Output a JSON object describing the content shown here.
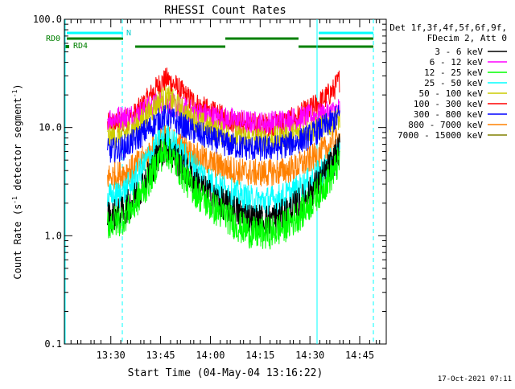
{
  "chart_data": {
    "type": "line",
    "title": "RHESSI Count Rates",
    "xlabel": "Start Time (04-May-04 13:16:22)",
    "ylabel_main": "Count Rate (s",
    "ylabel_sup": "-1",
    "ylabel_mid": " detector segment",
    "ylabel_sup2": "-1",
    "ylabel_end": ")",
    "yscale": "log",
    "ylim": [
      0.1,
      100.0
    ],
    "yticks": [
      {
        "value": 0.1,
        "label": "0.1"
      },
      {
        "value": 1.0,
        "label": "1.0"
      },
      {
        "value": 10.0,
        "label": "10.0"
      },
      {
        "value": 100.0,
        "label": "100.0"
      }
    ],
    "xlim_minutes_after_1316": [
      0,
      97
    ],
    "xticks": [
      {
        "minute": 14,
        "label": "13:30"
      },
      {
        "minute": 29,
        "label": "13:45"
      },
      {
        "minute": 44,
        "label": "14:00"
      },
      {
        "minute": 59,
        "label": "14:15"
      },
      {
        "minute": 74,
        "label": "14:30"
      },
      {
        "minute": 89,
        "label": "14:45"
      }
    ],
    "legend_header": [
      "Det 1f,3f,4f,5f,6f,9f,",
      "FDecim 2, Att 0"
    ],
    "legend_position": "right",
    "series": [
      {
        "name": "3 - 6 keV",
        "color": "#000000",
        "x": [
          13,
          17,
          21,
          25,
          29,
          31,
          33,
          37,
          41,
          45,
          49,
          53,
          57,
          61,
          65,
          69,
          73,
          77,
          81,
          83
        ],
        "y": [
          1.5,
          1.6,
          2.2,
          3.5,
          6.0,
          6.5,
          5.5,
          3.8,
          2.8,
          2.2,
          1.9,
          1.6,
          1.4,
          1.4,
          1.5,
          1.8,
          2.3,
          3.2,
          4.8,
          6.5
        ]
      },
      {
        "name": "6 - 12 keV",
        "color": "#ff00ff",
        "x": [
          13,
          17,
          21,
          25,
          29,
          31,
          33,
          37,
          41,
          45,
          49,
          53,
          57,
          61,
          65,
          69,
          73,
          77,
          81,
          83
        ],
        "y": [
          12,
          12.5,
          13,
          15,
          17,
          17,
          16,
          14.5,
          13.5,
          12.5,
          12,
          11.5,
          11,
          11,
          11.5,
          12,
          12.5,
          13,
          14,
          15
        ]
      },
      {
        "name": "12 - 25 keV",
        "color": "#00ff00",
        "x": [
          13,
          17,
          21,
          25,
          29,
          31,
          33,
          37,
          41,
          45,
          49,
          53,
          57,
          61,
          65,
          69,
          73,
          77,
          81,
          83
        ],
        "y": [
          1.3,
          1.4,
          1.9,
          3.0,
          5.5,
          6.0,
          5.0,
          3.2,
          2.3,
          1.8,
          1.5,
          1.2,
          1.05,
          1.05,
          1.15,
          1.4,
          1.8,
          2.6,
          3.8,
          5.0
        ]
      },
      {
        "name": "25 - 50 keV",
        "color": "#00ffff",
        "x": [
          13,
          17,
          21,
          25,
          29,
          31,
          33,
          37,
          41,
          45,
          49,
          53,
          57,
          61,
          65,
          69,
          73,
          77,
          81,
          83
        ],
        "y": [
          2.2,
          2.4,
          3.2,
          5.0,
          7.5,
          8.0,
          7.0,
          5.0,
          3.8,
          3.0,
          2.6,
          2.3,
          2.1,
          2.1,
          2.2,
          2.5,
          3.0,
          3.8,
          5.0,
          6.2
        ]
      },
      {
        "name": "50 - 100 keV",
        "color": "#cccc00",
        "x": [
          13,
          17,
          21,
          25,
          29,
          31,
          33,
          37,
          41,
          45,
          49,
          53,
          57,
          61,
          65,
          69,
          73,
          77,
          81,
          83
        ],
        "y": [
          8.0,
          8.5,
          10,
          13,
          18,
          19,
          17,
          13,
          11,
          9.5,
          8.5,
          8.0,
          7.8,
          7.8,
          8.0,
          8.5,
          9.2,
          10,
          11,
          12
        ]
      },
      {
        "name": "100 - 300 keV",
        "color": "#ff0000",
        "x": [
          13,
          17,
          21,
          25,
          29,
          31,
          33,
          37,
          41,
          45,
          49,
          53,
          57,
          61,
          65,
          69,
          73,
          77,
          81,
          83
        ],
        "y": [
          10.5,
          11,
          13,
          18,
          26,
          28,
          25,
          19,
          15.5,
          13.5,
          12,
          11,
          10.5,
          10.5,
          11,
          12,
          14,
          17,
          22,
          28
        ]
      },
      {
        "name": "300 - 800 keV",
        "color": "#0000ff",
        "x": [
          13,
          17,
          21,
          25,
          29,
          31,
          33,
          37,
          41,
          45,
          49,
          53,
          57,
          61,
          65,
          69,
          73,
          77,
          81,
          83
        ],
        "y": [
          6.0,
          6.3,
          7.5,
          9.5,
          12,
          12.5,
          11.5,
          9.8,
          8.6,
          7.7,
          7.0,
          6.6,
          6.4,
          6.4,
          6.6,
          7.2,
          8.0,
          9.5,
          11.5,
          13
        ]
      },
      {
        "name": "800 - 7000 keV",
        "color": "#ff8000",
        "x": [
          13,
          17,
          21,
          25,
          29,
          31,
          33,
          37,
          41,
          45,
          49,
          53,
          57,
          61,
          65,
          69,
          73,
          77,
          81,
          83
        ],
        "y": [
          3.5,
          3.7,
          4.3,
          5.5,
          7.5,
          8.0,
          7.4,
          6.0,
          5.2,
          4.6,
          4.2,
          3.9,
          3.8,
          3.8,
          3.9,
          4.2,
          4.8,
          5.8,
          7.0,
          8.0
        ]
      },
      {
        "name": "7000 - 15000 keV",
        "color": "#808000",
        "x": [],
        "y": []
      }
    ],
    "annotations": {
      "attenuator_label": "RD0",
      "decimation_label": "RD4",
      "night_label": "N"
    }
  },
  "footer": {
    "timestamp": "17-Oct-2021 07:11"
  }
}
